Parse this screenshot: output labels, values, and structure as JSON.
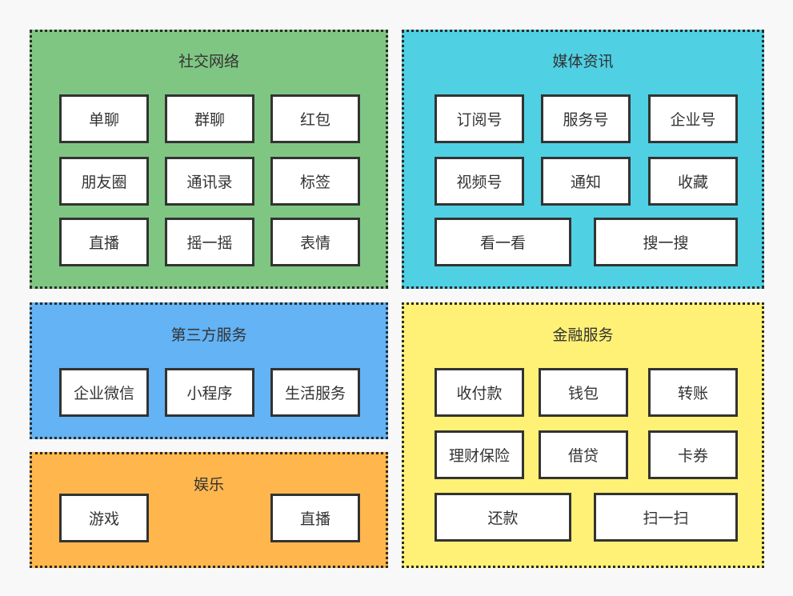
{
  "colors": {
    "social": "#80c683",
    "media": "#4fd0e3",
    "third_party": "#63b3f5",
    "entertainment": "#ffb74d",
    "finance": "#fff176"
  },
  "social": {
    "title": "社交网络",
    "items": [
      "单聊",
      "群聊",
      "红包",
      "朋友圈",
      "通讯录",
      "标签",
      "直播",
      "摇一摇",
      "表情"
    ]
  },
  "media": {
    "title": "媒体资讯",
    "items": [
      "订阅号",
      "服务号",
      "企业号",
      "视频号",
      "通知",
      "收藏",
      "看一看",
      "搜一搜"
    ]
  },
  "third_party": {
    "title": "第三方服务",
    "items": [
      "企业微信",
      "小程序",
      "生活服务"
    ]
  },
  "entertainment": {
    "title": "娱乐",
    "items": [
      "游戏",
      "直播"
    ]
  },
  "finance": {
    "title": "金融服务",
    "items": [
      "收付款",
      "钱包",
      "转账",
      "理财保险",
      "借贷",
      "卡券",
      "还款",
      "扫一扫"
    ]
  }
}
